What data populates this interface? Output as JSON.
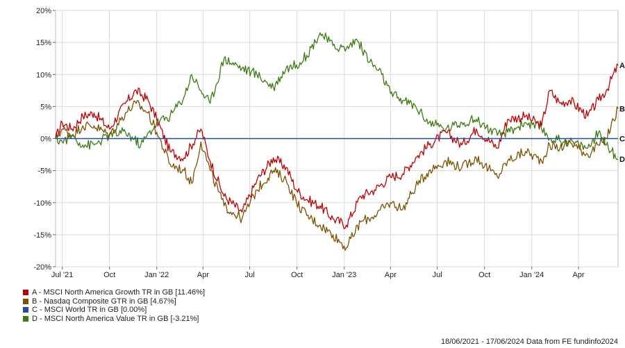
{
  "chart_data": {
    "type": "line",
    "ylim": [
      -20,
      20
    ],
    "y_ticks": [
      20,
      15,
      10,
      5,
      0,
      -5,
      -10,
      -15,
      -20
    ],
    "y_tick_labels": [
      "20%",
      "15%",
      "10%",
      "5%",
      "0%",
      "-5%",
      "-10%",
      "-15%",
      "-20%"
    ],
    "x_range": [
      "2021-06-18",
      "2024-06-17"
    ],
    "x_ticks": [
      {
        "date": "2021-07-01",
        "label": "Jul '21"
      },
      {
        "date": "2021-10-01",
        "label": "Oct"
      },
      {
        "date": "2022-01-01",
        "label": "Jan '22"
      },
      {
        "date": "2022-04-01",
        "label": "Apr"
      },
      {
        "date": "2022-07-01",
        "label": "Jul"
      },
      {
        "date": "2022-10-01",
        "label": "Oct"
      },
      {
        "date": "2023-01-01",
        "label": "Jan '23"
      },
      {
        "date": "2023-04-01",
        "label": "Apr"
      },
      {
        "date": "2023-07-01",
        "label": "Jul"
      },
      {
        "date": "2023-10-01",
        "label": "Oct"
      },
      {
        "date": "2024-01-01",
        "label": "Jan '24"
      },
      {
        "date": "2024-04-01",
        "label": "Apr"
      }
    ],
    "grid": true,
    "series": [
      {
        "name": "A - MSCI North America Growth TR in GB [11.46%]",
        "end_label": "A",
        "color": "#c00000",
        "points": [
          [
            "2021-06-18",
            0
          ],
          [
            "2021-07-01",
            2.5
          ],
          [
            "2021-07-20",
            1.5
          ],
          [
            "2021-08-10",
            3.5
          ],
          [
            "2021-09-01",
            4
          ],
          [
            "2021-10-01",
            1.5
          ],
          [
            "2021-11-01",
            5.5
          ],
          [
            "2021-11-22",
            7.5
          ],
          [
            "2021-12-15",
            6
          ],
          [
            "2022-01-01",
            3
          ],
          [
            "2022-01-27",
            -2
          ],
          [
            "2022-02-23",
            -3
          ],
          [
            "2022-03-28",
            1.5
          ],
          [
            "2022-04-15",
            -3.5
          ],
          [
            "2022-05-12",
            -9
          ],
          [
            "2022-06-16",
            -11.5
          ],
          [
            "2022-07-15",
            -6.5
          ],
          [
            "2022-08-16",
            -3
          ],
          [
            "2022-09-10",
            -4.5
          ],
          [
            "2022-09-30",
            -8
          ],
          [
            "2022-10-20",
            -9.5
          ],
          [
            "2022-11-15",
            -10.5
          ],
          [
            "2022-12-10",
            -12.5
          ],
          [
            "2023-01-05",
            -13.5
          ],
          [
            "2023-02-02",
            -9
          ],
          [
            "2023-03-01",
            -8
          ],
          [
            "2023-04-01",
            -6
          ],
          [
            "2023-04-25",
            -5.5
          ],
          [
            "2023-05-20",
            -3
          ],
          [
            "2023-06-15",
            -1
          ],
          [
            "2023-07-18",
            1
          ],
          [
            "2023-08-18",
            -1
          ],
          [
            "2023-09-15",
            1.5
          ],
          [
            "2023-10-26",
            -1.5
          ],
          [
            "2023-11-15",
            3
          ],
          [
            "2023-12-20",
            3.5
          ],
          [
            "2024-01-20",
            2
          ],
          [
            "2024-02-05",
            7.5
          ],
          [
            "2024-02-25",
            5.5
          ],
          [
            "2024-03-15",
            6
          ],
          [
            "2024-04-19",
            3.5
          ],
          [
            "2024-05-10",
            6
          ],
          [
            "2024-05-25",
            7.5
          ],
          [
            "2024-06-17",
            11.46
          ]
        ]
      },
      {
        "name": "B - Nasdaq Composite GTR in GB [4.67%]",
        "end_label": "B",
        "color": "#7a5200",
        "points": [
          [
            "2021-06-18",
            0
          ],
          [
            "2021-07-01",
            1.5
          ],
          [
            "2021-07-20",
            0.5
          ],
          [
            "2021-08-10",
            2
          ],
          [
            "2021-09-01",
            2
          ],
          [
            "2021-10-01",
            0.5
          ],
          [
            "2021-11-01",
            4
          ],
          [
            "2021-11-22",
            5.5
          ],
          [
            "2021-12-15",
            4
          ],
          [
            "2022-01-01",
            1
          ],
          [
            "2022-01-27",
            -4
          ],
          [
            "2022-02-23",
            -5
          ],
          [
            "2022-03-10",
            -7
          ],
          [
            "2022-03-28",
            -0.5
          ],
          [
            "2022-04-15",
            -5
          ],
          [
            "2022-05-12",
            -10.5
          ],
          [
            "2022-06-16",
            -12.5
          ],
          [
            "2022-07-15",
            -8
          ],
          [
            "2022-08-16",
            -5
          ],
          [
            "2022-09-10",
            -6.5
          ],
          [
            "2022-09-30",
            -10
          ],
          [
            "2022-10-20",
            -12
          ],
          [
            "2022-11-15",
            -13.5
          ],
          [
            "2022-12-10",
            -15
          ],
          [
            "2023-01-05",
            -17
          ],
          [
            "2023-02-02",
            -13
          ],
          [
            "2023-03-01",
            -12
          ],
          [
            "2023-04-01",
            -10
          ],
          [
            "2023-04-25",
            -11
          ],
          [
            "2023-05-20",
            -7.5
          ],
          [
            "2023-06-15",
            -5
          ],
          [
            "2023-07-18",
            -3.5
          ],
          [
            "2023-08-18",
            -4.5
          ],
          [
            "2023-09-15",
            -3
          ],
          [
            "2023-10-26",
            -6
          ],
          [
            "2023-11-15",
            -3.5
          ],
          [
            "2023-12-20",
            -2
          ],
          [
            "2024-01-20",
            -3.5
          ],
          [
            "2024-02-05",
            -1
          ],
          [
            "2024-02-25",
            -1.5
          ],
          [
            "2024-03-15",
            -0.5
          ],
          [
            "2024-04-19",
            -2.5
          ],
          [
            "2024-05-10",
            -1
          ],
          [
            "2024-05-25",
            0
          ],
          [
            "2024-06-17",
            4.67
          ]
        ]
      },
      {
        "name": "C - MSCI World TR in GB [0.00%]",
        "end_label": "C",
        "color": "#1f4ea3",
        "points": [
          [
            "2021-06-18",
            0
          ],
          [
            "2024-06-17",
            0
          ]
        ]
      },
      {
        "name": "D - MSCI North America Value TR in GB [-3.21%]",
        "end_label": "D",
        "color": "#3d7a10",
        "points": [
          [
            "2021-06-18",
            0
          ],
          [
            "2021-07-01",
            -0.5
          ],
          [
            "2021-07-20",
            0.5
          ],
          [
            "2021-08-10",
            -1
          ],
          [
            "2021-09-01",
            -1
          ],
          [
            "2021-09-30",
            0.5
          ],
          [
            "2021-11-01",
            1
          ],
          [
            "2021-12-01",
            -1
          ],
          [
            "2022-01-01",
            2.5
          ],
          [
            "2022-01-27",
            3.5
          ],
          [
            "2022-02-23",
            6.5
          ],
          [
            "2022-03-10",
            10
          ],
          [
            "2022-03-28",
            7.5
          ],
          [
            "2022-04-15",
            5.5
          ],
          [
            "2022-05-12",
            12.5
          ],
          [
            "2022-06-16",
            11
          ],
          [
            "2022-07-15",
            10
          ],
          [
            "2022-08-16",
            8
          ],
          [
            "2022-09-10",
            11
          ],
          [
            "2022-09-30",
            11.5
          ],
          [
            "2022-10-20",
            13
          ],
          [
            "2022-11-15",
            16.5
          ],
          [
            "2022-12-10",
            14.5
          ],
          [
            "2023-01-05",
            14
          ],
          [
            "2023-01-25",
            15.5
          ],
          [
            "2023-02-20",
            12
          ],
          [
            "2023-03-15",
            10
          ],
          [
            "2023-04-01",
            7
          ],
          [
            "2023-04-25",
            6
          ],
          [
            "2023-05-20",
            5
          ],
          [
            "2023-06-15",
            2.5
          ],
          [
            "2023-07-18",
            1.5
          ],
          [
            "2023-08-18",
            2.5
          ],
          [
            "2023-09-15",
            3
          ],
          [
            "2023-10-26",
            0.5
          ],
          [
            "2023-11-15",
            1
          ],
          [
            "2023-12-20",
            2.5
          ],
          [
            "2024-01-20",
            1.5
          ],
          [
            "2024-02-05",
            0
          ],
          [
            "2024-03-15",
            -0.5
          ],
          [
            "2024-04-19",
            -1.5
          ],
          [
            "2024-05-10",
            1
          ],
          [
            "2024-05-25",
            -1
          ],
          [
            "2024-06-17",
            -3.21
          ]
        ]
      }
    ]
  },
  "legend": [
    {
      "label": "A - MSCI North America Growth TR in GB [11.46%]",
      "color": "#c00000"
    },
    {
      "label": "B - Nasdaq Composite GTR in GB [4.67%]",
      "color": "#7a5200"
    },
    {
      "label": "C - MSCI World TR in GB [0.00%]",
      "color": "#1f4ea3"
    },
    {
      "label": "D - MSCI North America Value TR in GB [-3.21%]",
      "color": "#3d7a10"
    }
  ],
  "footer": "18/06/2021 - 17/06/2024 Data from FE fundinfo2024"
}
